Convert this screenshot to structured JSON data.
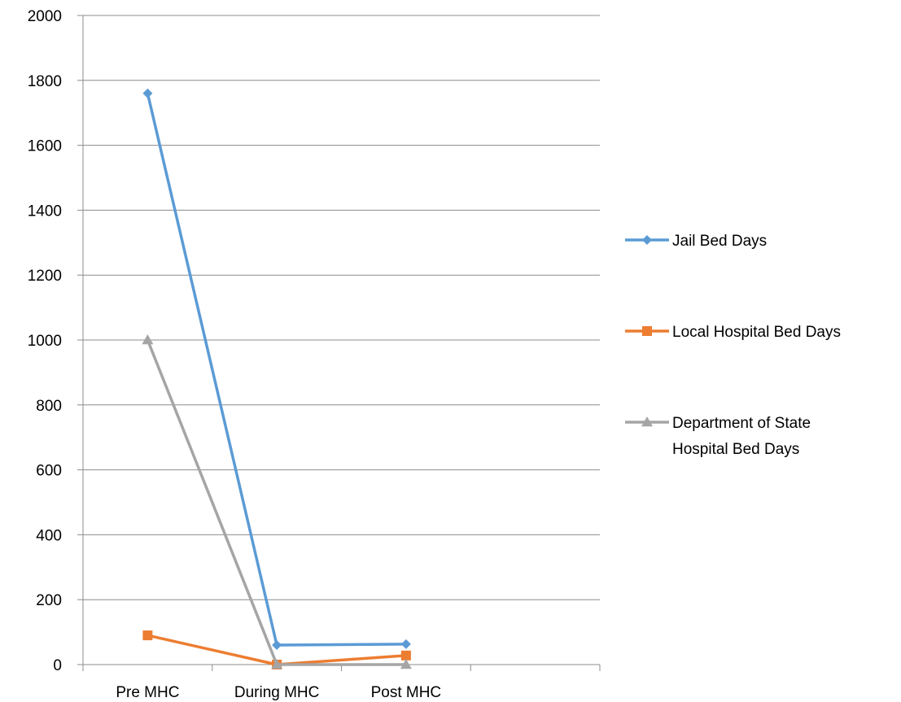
{
  "chart_data": {
    "type": "line",
    "categories": [
      "Pre MHC",
      "During MHC",
      "Post MHC"
    ],
    "y_axis": {
      "min": 0,
      "max": 2000,
      "ticks": [
        "0",
        "200",
        "400",
        "600",
        "800",
        "1000",
        "1200",
        "1400",
        "1600",
        "1800",
        "2000"
      ]
    },
    "grid": true,
    "legend_position": "right",
    "series": [
      {
        "name": "Jail Bed Days",
        "values": [
          1760,
          60,
          63
        ],
        "color": "#5B9BD5",
        "marker": "diamond"
      },
      {
        "name": "Local Hospital Bed Days",
        "values": [
          90,
          0,
          28
        ],
        "color": "#ED7D31",
        "marker": "square"
      },
      {
        "name": "Department of State Hospital Bed Days",
        "values": [
          1000,
          0,
          0
        ],
        "color": "#A5A5A5",
        "marker": "triangle"
      }
    ],
    "legend_lines": [
      [
        "Jail Bed Days"
      ],
      [
        "Local Hospital Bed Days"
      ],
      [
        "Department of State",
        "Hospital Bed Days"
      ]
    ]
  }
}
